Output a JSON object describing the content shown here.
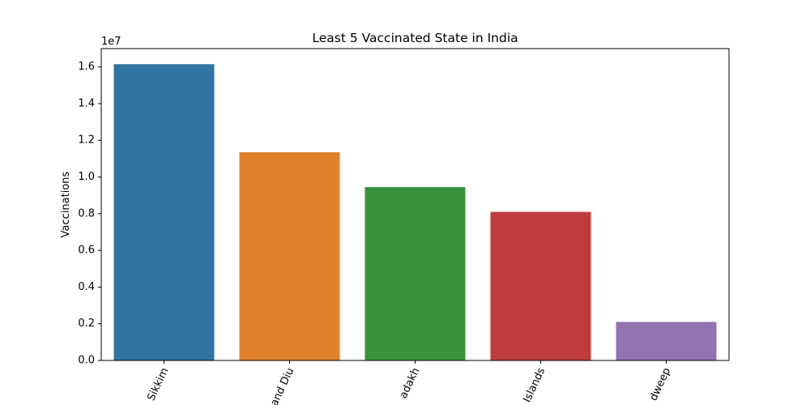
{
  "chart_data": {
    "type": "bar",
    "title": "Least 5 Vaccinated State in India",
    "xlabel": "",
    "ylabel": "Vaccinations",
    "y_offset_text": "1e7",
    "categories": [
      "Sikkim",
      "and Diu",
      "adakh",
      "Islands",
      "dweep"
    ],
    "values": [
      16150000,
      11350000,
      9450000,
      8100000,
      2100000
    ],
    "colors": [
      "#3274a1",
      "#e1812c",
      "#3a923a",
      "#c03d3e",
      "#9372b2"
    ],
    "ylim": [
      0,
      17000000
    ],
    "yticks": [
      0,
      2000000,
      4000000,
      6000000,
      8000000,
      10000000,
      12000000,
      14000000,
      16000000
    ],
    "ytick_labels": [
      "0.0",
      "0.2",
      "0.4",
      "0.6",
      "0.8",
      "1.0",
      "1.2",
      "1.4",
      "1.6"
    ],
    "xtick_rotation_deg": -65,
    "grid": false,
    "legend": "none"
  }
}
